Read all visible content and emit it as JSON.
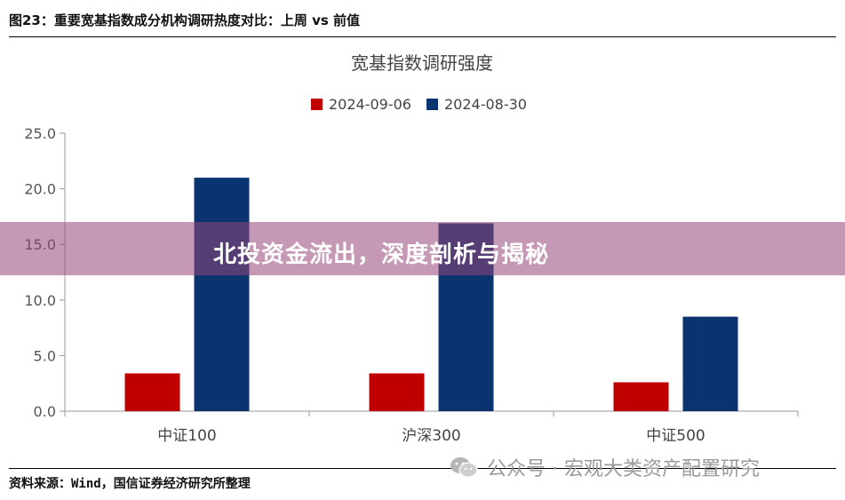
{
  "caption": "图23：重要宽基指数成分机构调研热度对比：上周 vs 前值",
  "banner": "北投资金流出，深度剖析与揭秘",
  "source": "资料来源：Wind，国信证券经济研究所整理",
  "watermark": {
    "text": "公众号 · 宏观大类资产配置研究",
    "icon": "wechat-icon"
  },
  "chart_data": {
    "type": "bar",
    "title": "宽基指数调研强度",
    "categories": [
      "中证100",
      "沪深300",
      "中证500"
    ],
    "series": [
      {
        "name": "2024-09-06",
        "values": [
          3.4,
          3.4,
          2.6
        ],
        "color": "#c00000"
      },
      {
        "name": "2024-08-30",
        "values": [
          21.0,
          16.9,
          8.5
        ],
        "color": "#0a3470"
      }
    ],
    "yticks": [
      "0.0",
      "5.0",
      "10.0",
      "15.0",
      "20.0",
      "25.0"
    ],
    "ylim": [
      0,
      25
    ],
    "grid": false,
    "legend": "top-center"
  }
}
